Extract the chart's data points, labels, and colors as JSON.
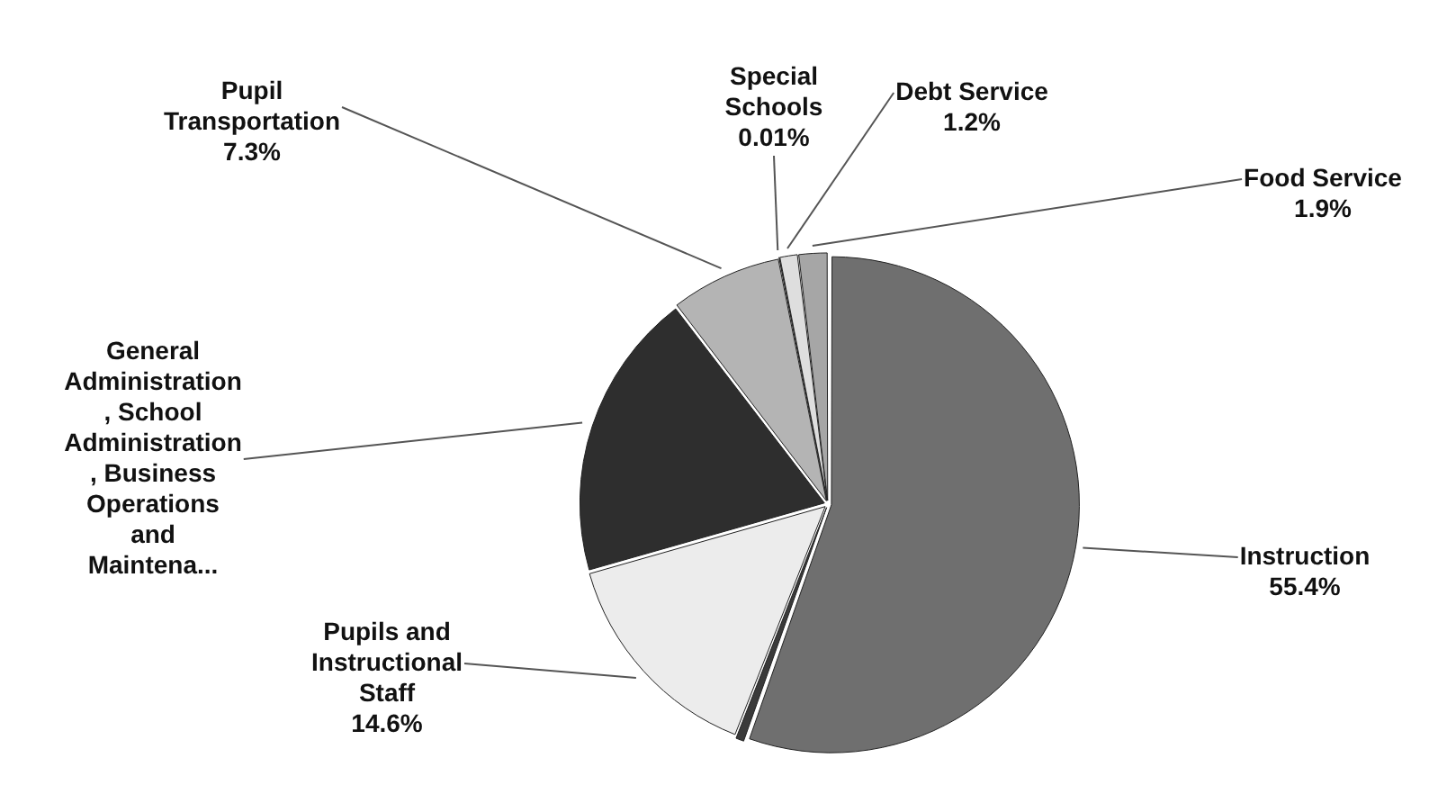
{
  "chart_data": {
    "type": "pie",
    "categories": [
      "Instruction",
      null,
      "Pupils and Instructional Staff",
      "General Administration, School Administration, Business Operations and Maintena...",
      "Pupil Transportation",
      "Special Schools",
      "Debt Service",
      "Food Service"
    ],
    "values": [
      55.4,
      0.59,
      14.6,
      19.0,
      7.3,
      0.01,
      1.2,
      1.9
    ],
    "colors": [
      "#6f6f6f",
      "#3a3a3a",
      "#ececec",
      "#2e2e2e",
      "#b4b4b4",
      "#1e1e1e",
      "#dedede",
      "#a6a6a6"
    ],
    "value_labels": [
      "55.4%",
      null,
      "14.6%",
      null,
      "7.3%",
      "0.01%",
      "1.2%",
      "1.9%"
    ]
  }
}
